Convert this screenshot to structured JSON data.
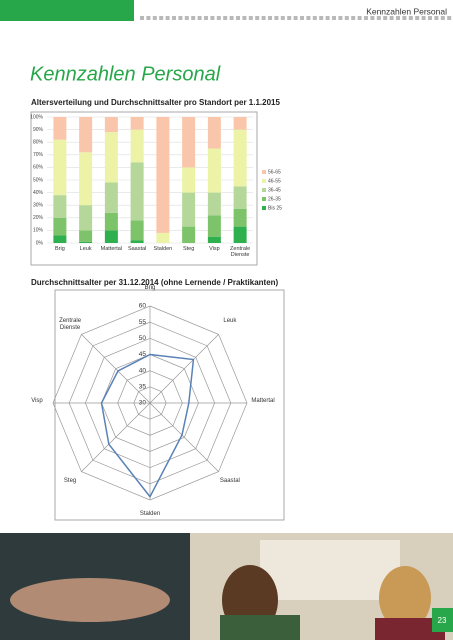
{
  "header": {
    "section": "Kennzahlen Personal"
  },
  "page_title": "Kennzahlen Personal",
  "page_number": "23",
  "chart_data": [
    {
      "type": "stacked-bar",
      "title": "Altersverteilung und Durchschnittsalter pro Standort per 1.1.2015",
      "categories": [
        "Brig",
        "Leuk",
        "Mattertal",
        "Saastal",
        "Stalden",
        "Steg",
        "Visp",
        "Zentrale Dienste"
      ],
      "series": [
        {
          "name": "Bis 25",
          "color": "#2eb04f",
          "values": [
            6,
            1,
            10,
            2,
            0,
            0,
            5,
            13
          ]
        },
        {
          "name": "26-35",
          "color": "#7cc36a",
          "values": [
            14,
            9,
            14,
            16,
            0,
            13,
            17,
            14
          ]
        },
        {
          "name": "36-45",
          "color": "#b5d89a",
          "values": [
            18,
            20,
            24,
            46,
            0,
            27,
            18,
            18
          ]
        },
        {
          "name": "46-55",
          "color": "#ecf2a6",
          "values": [
            44,
            42,
            40,
            26,
            8,
            20,
            35,
            45
          ]
        },
        {
          "name": "56-65",
          "color": "#f9c6ab",
          "values": [
            18,
            28,
            12,
            10,
            92,
            40,
            25,
            10
          ]
        }
      ],
      "ylim": [
        0,
        100
      ],
      "yticks": [
        {
          "value": 0,
          "label": "0%"
        },
        {
          "value": 10,
          "label": "10%"
        },
        {
          "value": 20,
          "label": "20%"
        },
        {
          "value": 30,
          "label": "30%"
        },
        {
          "value": 40,
          "label": "40%"
        },
        {
          "value": 50,
          "label": "50%"
        },
        {
          "value": 60,
          "label": "60%"
        },
        {
          "value": 70,
          "label": "70%"
        },
        {
          "value": 80,
          "label": "80%"
        },
        {
          "value": 90,
          "label": "90%"
        },
        {
          "value": 100,
          "label": "100%"
        }
      ],
      "grid": true,
      "legend": "right"
    },
    {
      "type": "radar",
      "title": "Durchschnittsalter per 31.12.2014 (ohne Lernende / Praktikanten)",
      "categories": [
        "Brig",
        "Leuk",
        "Mattertal",
        "Saastal",
        "Stalden",
        "Steg",
        "Visp",
        "Zentrale Dienste"
      ],
      "series": [
        {
          "color": "#5a82b8",
          "values": [
            45,
            49,
            42,
            44,
            59,
            48,
            45,
            44
          ]
        }
      ],
      "ylim": [
        30,
        60
      ],
      "yticks": [
        30,
        35,
        40,
        45,
        50,
        55,
        60
      ]
    }
  ]
}
